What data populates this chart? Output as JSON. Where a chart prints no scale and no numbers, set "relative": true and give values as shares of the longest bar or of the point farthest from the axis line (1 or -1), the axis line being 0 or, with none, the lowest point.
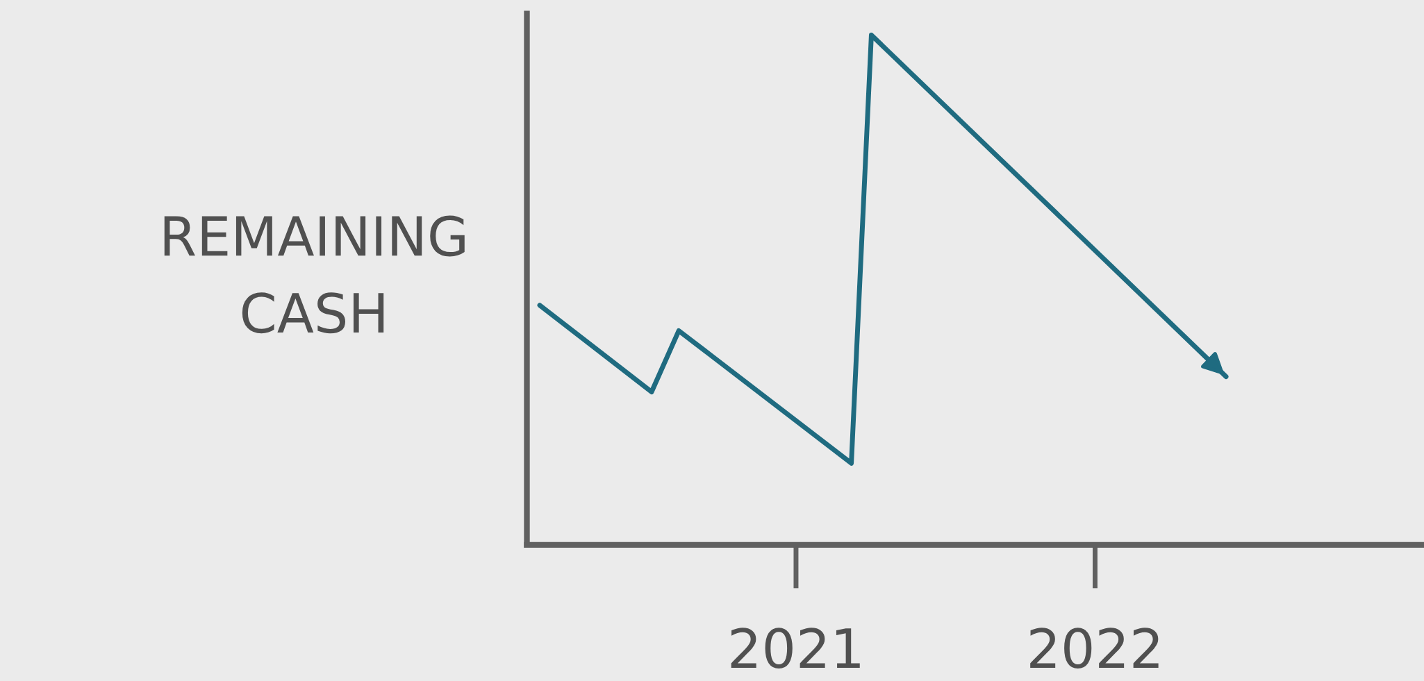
{
  "chart_data": {
    "type": "line",
    "ylabel": "REMAINING\nCASH",
    "relative": true,
    "x": [
      2020.143,
      2020.517,
      2020.608,
      2021.185,
      2021.252,
      2022.438
    ],
    "xlim": [
      2020.1,
      2023.1
    ],
    "xticks": [
      2021,
      2022
    ],
    "series": [
      {
        "color": "#1f6b80",
        "values": [
          0.47,
          0.3,
          0.42,
          0.16,
          1,
          0.33
        ]
      }
    ],
    "grid": false,
    "marker": "none",
    "line_style": "solid"
  }
}
